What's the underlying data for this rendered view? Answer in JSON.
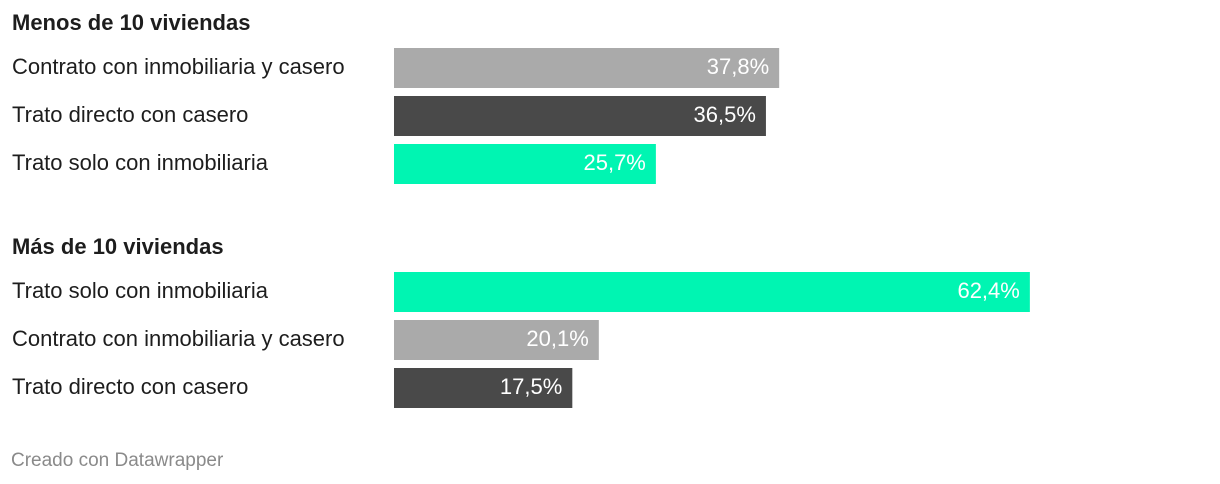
{
  "chart_data": [
    {
      "type": "bar",
      "title": "Menos de 10 viviendas",
      "categories": [
        "Contrato con inmobiliaria y casero",
        "Trato directo con casero",
        "Trato solo con inmobiliaria"
      ],
      "values": [
        37.8,
        36.5,
        25.7
      ],
      "value_labels": [
        "37,8%",
        "36,5%",
        "25,7%"
      ],
      "colors": [
        "#aaaaaa",
        "#494949",
        "#00f5b2"
      ]
    },
    {
      "type": "bar",
      "title": "Más de 10 viviendas",
      "categories": [
        "Trato solo con inmobiliaria",
        "Contrato con inmobiliaria y casero",
        "Trato directo con casero"
      ],
      "values": [
        62.4,
        20.1,
        17.5
      ],
      "value_labels": [
        "62,4%",
        "20,1%",
        "17,5%"
      ],
      "colors": [
        "#00f5b2",
        "#aaaaaa",
        "#494949"
      ]
    }
  ],
  "credit": "Creado con Datawrapper"
}
